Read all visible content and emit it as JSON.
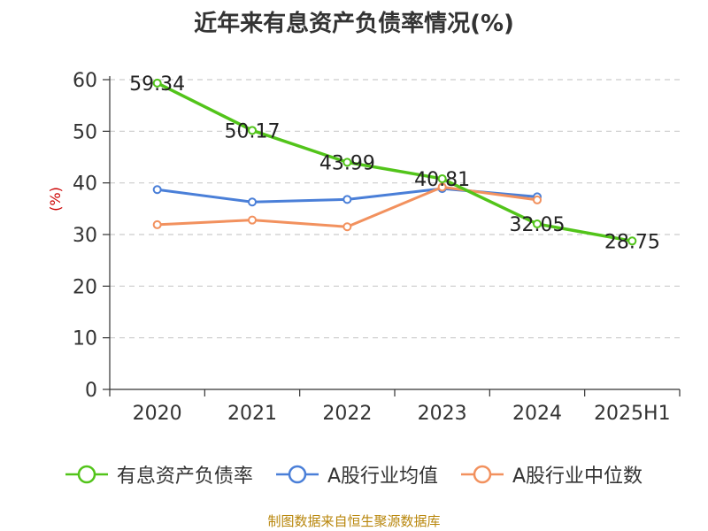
{
  "chart_data": {
    "type": "line",
    "title": "近年来有息资产负债率情况(%)",
    "ylabel": "(%)",
    "xlabel": "",
    "categories": [
      "2020",
      "2021",
      "2022",
      "2023",
      "2024",
      "2025H1"
    ],
    "ylim": [
      0,
      60
    ],
    "yticks": [
      0,
      10,
      20,
      30,
      40,
      50,
      60
    ],
    "grid": true,
    "legend_position": "bottom",
    "series": [
      {
        "name": "有息资产负债率",
        "color": "#52c41a",
        "values": [
          59.34,
          50.17,
          43.99,
          40.81,
          32.05,
          28.75
        ],
        "labels": [
          "59.34",
          "50.17",
          "43.99",
          "40.81",
          "32.05",
          "28.75"
        ]
      },
      {
        "name": "A股行业均值",
        "color": "#4a7fd8",
        "values": [
          38.7,
          36.3,
          36.8,
          38.9,
          37.3,
          null
        ]
      },
      {
        "name": "A股行业中位数",
        "color": "#f2915e",
        "values": [
          31.9,
          32.8,
          31.5,
          39.2,
          36.7,
          null
        ]
      }
    ],
    "source": "制图数据来自恒生聚源数据库"
  }
}
